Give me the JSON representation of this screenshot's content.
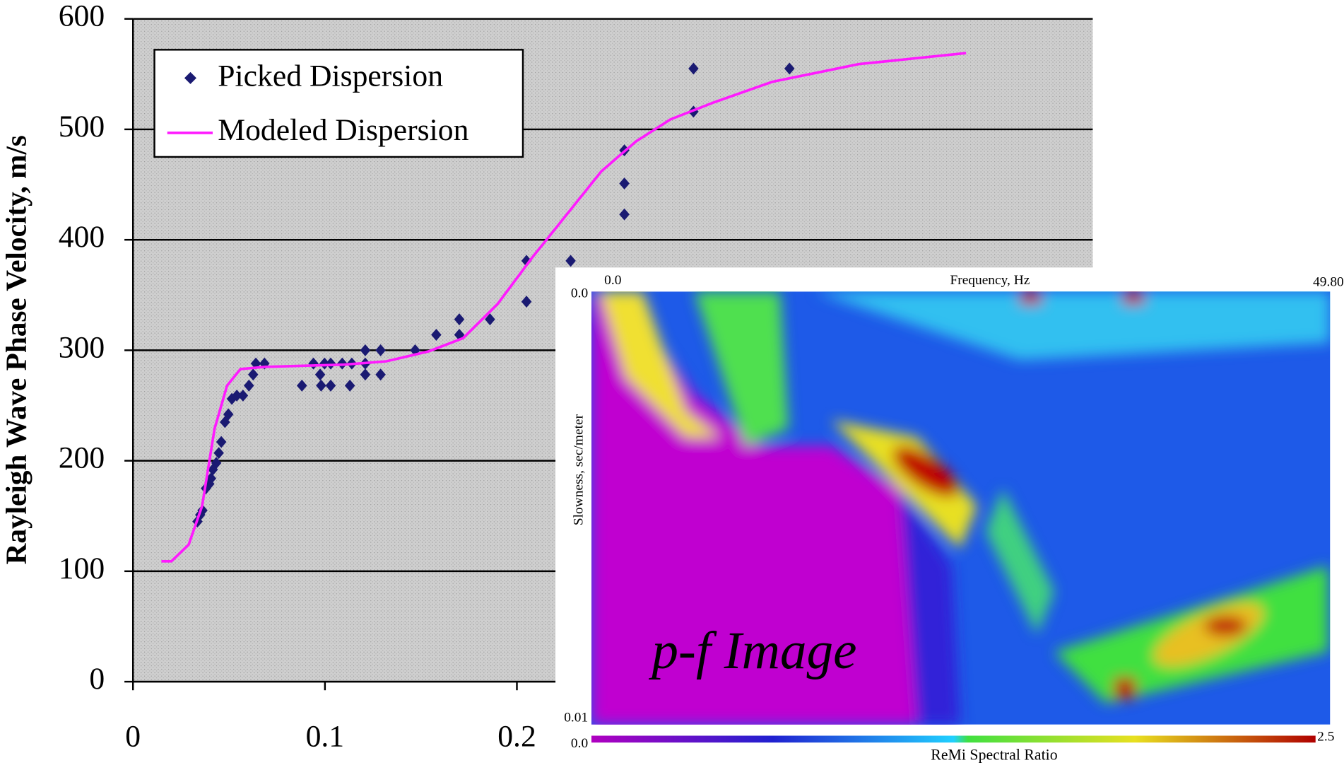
{
  "chart_data": {
    "type": "scatter",
    "y_label": "Rayleigh Wave Phase Velocity, m/s",
    "xlim": [
      0,
      0.5
    ],
    "ylim": [
      0,
      600
    ],
    "xticks": [
      0,
      0.1,
      0.2
    ],
    "yticks": [
      0,
      100,
      200,
      300,
      400,
      500,
      600
    ],
    "grid": true,
    "legend": "upper left",
    "series": [
      {
        "name": "Picked Dispersion",
        "style": "markers",
        "color": "#1a1a72",
        "x": [
          0.0336,
          0.035,
          0.0362,
          0.038,
          0.0398,
          0.0407,
          0.0416,
          0.0434,
          0.0447,
          0.046,
          0.0479,
          0.0497,
          0.0515,
          0.0541,
          0.0573,
          0.0604,
          0.0626,
          0.064,
          0.0685,
          0.088,
          0.094,
          0.0975,
          0.0998,
          0.098,
          0.103,
          0.103,
          0.109,
          0.113,
          0.114,
          0.121,
          0.121,
          0.121,
          0.129,
          0.129,
          0.147,
          0.158,
          0.17,
          0.17,
          0.186,
          0.205,
          0.205,
          0.228,
          0.256,
          0.256,
          0.256,
          0.292,
          0.292,
          0.342
        ],
        "values": [
          145,
          151,
          155,
          175,
          179,
          184,
          192,
          198,
          207,
          217,
          235,
          242,
          256,
          259,
          259,
          268,
          278,
          288,
          288,
          268,
          288,
          278,
          288,
          268,
          268,
          288,
          288,
          268,
          288,
          300,
          288,
          278,
          300,
          278,
          300,
          314,
          328,
          314,
          328,
          381,
          344,
          381,
          481,
          451,
          423,
          555,
          516,
          555
        ]
      },
      {
        "name": "Modeled Dispersion",
        "style": "line",
        "color": "#ff1aff",
        "x": [
          0.0148,
          0.02,
          0.029,
          0.036,
          0.0425,
          0.049,
          0.056,
          0.069,
          0.11,
          0.132,
          0.154,
          0.172,
          0.19,
          0.208,
          0.226,
          0.244,
          0.262,
          0.28,
          0.302,
          0.333,
          0.378,
          0.434
        ],
        "values": [
          109,
          109,
          124,
          159,
          229,
          268,
          283,
          285,
          287,
          290,
          299,
          311,
          342,
          384,
          423,
          462,
          489,
          509,
          524,
          543,
          559,
          569
        ]
      }
    ]
  },
  "inset": {
    "title": "p-f Image",
    "x_label": "Frequency, Hz",
    "x_min": "0.0",
    "x_max": "49.80",
    "y_label": "Slowness, sec/meter",
    "y_min": "0.0",
    "y_max": "0.01",
    "colorbar_label": "ReMi Spectral Ratio",
    "colorbar_min": "0.0",
    "colorbar_max": "2.5"
  }
}
